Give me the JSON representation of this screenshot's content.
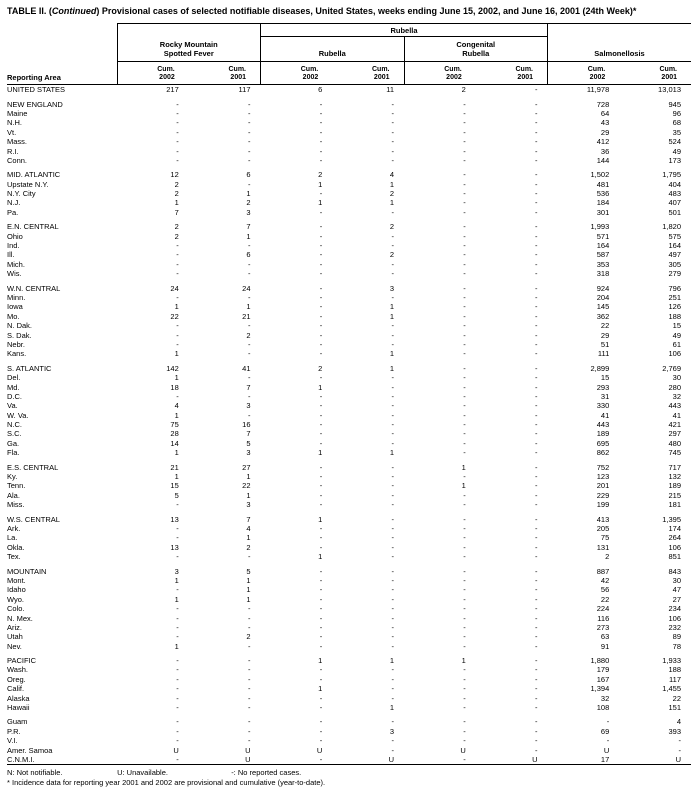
{
  "title": {
    "part1": "TABLE II. (",
    "italic": "Continued",
    "part2": ") Provisional cases of selected notifiable diseases, United States, weeks ending June 15, 2002, and June 16, 2001 (24th Week)*"
  },
  "header": {
    "reporting_area": "Reporting Area",
    "rubella_span": "Rubella",
    "groups": [
      "Rocky Mountain\nSpotted Fever",
      "Rubella",
      "Congenital\nRubella",
      "Salmonellosis"
    ],
    "cum_label": "Cum.",
    "years": [
      "2002",
      "2001"
    ]
  },
  "sections": [
    {
      "rows": [
        {
          "area": "UNITED STATES",
          "values": [
            "217",
            "117",
            "6",
            "11",
            "2",
            "-",
            "11,978",
            "13,013"
          ]
        }
      ]
    },
    {
      "rows": [
        {
          "area": "NEW ENGLAND",
          "values": [
            "-",
            "-",
            "-",
            "-",
            "-",
            "-",
            "728",
            "945"
          ]
        },
        {
          "area": "Maine",
          "values": [
            "-",
            "-",
            "-",
            "-",
            "-",
            "-",
            "64",
            "96"
          ]
        },
        {
          "area": "N.H.",
          "values": [
            "-",
            "-",
            "-",
            "-",
            "-",
            "-",
            "43",
            "68"
          ]
        },
        {
          "area": "Vt.",
          "values": [
            "-",
            "-",
            "-",
            "-",
            "-",
            "-",
            "29",
            "35"
          ]
        },
        {
          "area": "Mass.",
          "values": [
            "-",
            "-",
            "-",
            "-",
            "-",
            "-",
            "412",
            "524"
          ]
        },
        {
          "area": "R.I.",
          "values": [
            "-",
            "-",
            "-",
            "-",
            "-",
            "-",
            "36",
            "49"
          ]
        },
        {
          "area": "Conn.",
          "values": [
            "-",
            "-",
            "-",
            "-",
            "-",
            "-",
            "144",
            "173"
          ]
        }
      ]
    },
    {
      "rows": [
        {
          "area": "MID. ATLANTIC",
          "values": [
            "12",
            "6",
            "2",
            "4",
            "-",
            "-",
            "1,502",
            "1,795"
          ]
        },
        {
          "area": "Upstate N.Y.",
          "values": [
            "2",
            "-",
            "1",
            "1",
            "-",
            "-",
            "481",
            "404"
          ]
        },
        {
          "area": "N.Y. City",
          "values": [
            "2",
            "1",
            "-",
            "2",
            "-",
            "-",
            "536",
            "483"
          ]
        },
        {
          "area": "N.J.",
          "values": [
            "1",
            "2",
            "1",
            "1",
            "-",
            "-",
            "184",
            "407"
          ]
        },
        {
          "area": "Pa.",
          "values": [
            "7",
            "3",
            "-",
            "-",
            "-",
            "-",
            "301",
            "501"
          ]
        }
      ]
    },
    {
      "rows": [
        {
          "area": "E.N. CENTRAL",
          "values": [
            "2",
            "7",
            "-",
            "2",
            "-",
            "-",
            "1,993",
            "1,820"
          ]
        },
        {
          "area": "Ohio",
          "values": [
            "2",
            "1",
            "-",
            "-",
            "-",
            "-",
            "571",
            "575"
          ]
        },
        {
          "area": "Ind.",
          "values": [
            "-",
            "-",
            "-",
            "-",
            "-",
            "-",
            "164",
            "164"
          ]
        },
        {
          "area": "Ill.",
          "values": [
            "-",
            "6",
            "-",
            "2",
            "-",
            "-",
            "587",
            "497"
          ]
        },
        {
          "area": "Mich.",
          "values": [
            "-",
            "-",
            "-",
            "-",
            "-",
            "-",
            "353",
            "305"
          ]
        },
        {
          "area": "Wis.",
          "values": [
            "-",
            "-",
            "-",
            "-",
            "-",
            "-",
            "318",
            "279"
          ]
        }
      ]
    },
    {
      "rows": [
        {
          "area": "W.N. CENTRAL",
          "values": [
            "24",
            "24",
            "-",
            "3",
            "-",
            "-",
            "924",
            "796"
          ]
        },
        {
          "area": "Minn.",
          "values": [
            "-",
            "-",
            "-",
            "-",
            "-",
            "-",
            "204",
            "251"
          ]
        },
        {
          "area": "Iowa",
          "values": [
            "1",
            "1",
            "-",
            "1",
            "-",
            "-",
            "145",
            "126"
          ]
        },
        {
          "area": "Mo.",
          "values": [
            "22",
            "21",
            "-",
            "1",
            "-",
            "-",
            "362",
            "188"
          ]
        },
        {
          "area": "N. Dak.",
          "values": [
            "-",
            "-",
            "-",
            "-",
            "-",
            "-",
            "22",
            "15"
          ]
        },
        {
          "area": "S. Dak.",
          "values": [
            "-",
            "2",
            "-",
            "-",
            "-",
            "-",
            "29",
            "49"
          ]
        },
        {
          "area": "Nebr.",
          "values": [
            "-",
            "-",
            "-",
            "-",
            "-",
            "-",
            "51",
            "61"
          ]
        },
        {
          "area": "Kans.",
          "values": [
            "1",
            "-",
            "-",
            "1",
            "-",
            "-",
            "111",
            "106"
          ]
        }
      ]
    },
    {
      "rows": [
        {
          "area": "S. ATLANTIC",
          "values": [
            "142",
            "41",
            "2",
            "1",
            "-",
            "-",
            "2,899",
            "2,769"
          ]
        },
        {
          "area": "Del.",
          "values": [
            "1",
            "-",
            "-",
            "-",
            "-",
            "-",
            "15",
            "30"
          ]
        },
        {
          "area": "Md.",
          "values": [
            "18",
            "7",
            "1",
            "-",
            "-",
            "-",
            "293",
            "280"
          ]
        },
        {
          "area": "D.C.",
          "values": [
            "-",
            "-",
            "-",
            "-",
            "-",
            "-",
            "31",
            "32"
          ]
        },
        {
          "area": "Va.",
          "values": [
            "4",
            "3",
            "-",
            "-",
            "-",
            "-",
            "330",
            "443"
          ]
        },
        {
          "area": "W. Va.",
          "values": [
            "1",
            "-",
            "-",
            "-",
            "-",
            "-",
            "41",
            "41"
          ]
        },
        {
          "area": "N.C.",
          "values": [
            "75",
            "16",
            "-",
            "-",
            "-",
            "-",
            "443",
            "421"
          ]
        },
        {
          "area": "S.C.",
          "values": [
            "28",
            "7",
            "-",
            "-",
            "-",
            "-",
            "189",
            "297"
          ]
        },
        {
          "area": "Ga.",
          "values": [
            "14",
            "5",
            "-",
            "-",
            "-",
            "-",
            "695",
            "480"
          ]
        },
        {
          "area": "Fla.",
          "values": [
            "1",
            "3",
            "1",
            "1",
            "-",
            "-",
            "862",
            "745"
          ]
        }
      ]
    },
    {
      "rows": [
        {
          "area": "E.S. CENTRAL",
          "values": [
            "21",
            "27",
            "-",
            "-",
            "1",
            "-",
            "752",
            "717"
          ]
        },
        {
          "area": "Ky.",
          "values": [
            "1",
            "1",
            "-",
            "-",
            "-",
            "-",
            "123",
            "132"
          ]
        },
        {
          "area": "Tenn.",
          "values": [
            "15",
            "22",
            "-",
            "-",
            "1",
            "-",
            "201",
            "189"
          ]
        },
        {
          "area": "Ala.",
          "values": [
            "5",
            "1",
            "-",
            "-",
            "-",
            "-",
            "229",
            "215"
          ]
        },
        {
          "area": "Miss.",
          "values": [
            "-",
            "3",
            "-",
            "-",
            "-",
            "-",
            "199",
            "181"
          ]
        }
      ]
    },
    {
      "rows": [
        {
          "area": "W.S. CENTRAL",
          "values": [
            "13",
            "7",
            "1",
            "-",
            "-",
            "-",
            "413",
            "1,395"
          ]
        },
        {
          "area": "Ark.",
          "values": [
            "-",
            "4",
            "-",
            "-",
            "-",
            "-",
            "205",
            "174"
          ]
        },
        {
          "area": "La.",
          "values": [
            "-",
            "1",
            "-",
            "-",
            "-",
            "-",
            "75",
            "264"
          ]
        },
        {
          "area": "Okla.",
          "values": [
            "13",
            "2",
            "-",
            "-",
            "-",
            "-",
            "131",
            "106"
          ]
        },
        {
          "area": "Tex.",
          "values": [
            "-",
            "-",
            "1",
            "-",
            "-",
            "-",
            "2",
            "851"
          ]
        }
      ]
    },
    {
      "rows": [
        {
          "area": "MOUNTAIN",
          "values": [
            "3",
            "5",
            "-",
            "-",
            "-",
            "-",
            "887",
            "843"
          ]
        },
        {
          "area": "Mont.",
          "values": [
            "1",
            "1",
            "-",
            "-",
            "-",
            "-",
            "42",
            "30"
          ]
        },
        {
          "area": "Idaho",
          "values": [
            "-",
            "1",
            "-",
            "-",
            "-",
            "-",
            "56",
            "47"
          ]
        },
        {
          "area": "Wyo.",
          "values": [
            "1",
            "1",
            "-",
            "-",
            "-",
            "-",
            "22",
            "27"
          ]
        },
        {
          "area": "Colo.",
          "values": [
            "-",
            "-",
            "-",
            "-",
            "-",
            "-",
            "224",
            "234"
          ]
        },
        {
          "area": "N. Mex.",
          "values": [
            "-",
            "-",
            "-",
            "-",
            "-",
            "-",
            "116",
            "106"
          ]
        },
        {
          "area": "Ariz.",
          "values": [
            "-",
            "-",
            "-",
            "-",
            "-",
            "-",
            "273",
            "232"
          ]
        },
        {
          "area": "Utah",
          "values": [
            "-",
            "2",
            "-",
            "-",
            "-",
            "-",
            "63",
            "89"
          ]
        },
        {
          "area": "Nev.",
          "values": [
            "1",
            "-",
            "-",
            "-",
            "-",
            "-",
            "91",
            "78"
          ]
        }
      ]
    },
    {
      "rows": [
        {
          "area": "PACIFIC",
          "values": [
            "-",
            "-",
            "1",
            "1",
            "1",
            "-",
            "1,880",
            "1,933"
          ]
        },
        {
          "area": "Wash.",
          "values": [
            "-",
            "-",
            "-",
            "-",
            "-",
            "-",
            "179",
            "188"
          ]
        },
        {
          "area": "Oreg.",
          "values": [
            "-",
            "-",
            "-",
            "-",
            "-",
            "-",
            "167",
            "117"
          ]
        },
        {
          "area": "Calif.",
          "values": [
            "-",
            "-",
            "1",
            "-",
            "-",
            "-",
            "1,394",
            "1,455"
          ]
        },
        {
          "area": "Alaska",
          "values": [
            "-",
            "-",
            "-",
            "-",
            "-",
            "-",
            "32",
            "22"
          ]
        },
        {
          "area": "Hawaii",
          "values": [
            "-",
            "-",
            "-",
            "1",
            "-",
            "-",
            "108",
            "151"
          ]
        }
      ]
    },
    {
      "rows": [
        {
          "area": "Guam",
          "values": [
            "-",
            "-",
            "-",
            "-",
            "-",
            "-",
            "-",
            "4"
          ]
        },
        {
          "area": "P.R.",
          "values": [
            "-",
            "-",
            "-",
            "3",
            "-",
            "-",
            "69",
            "393"
          ]
        },
        {
          "area": "V.I.",
          "values": [
            "-",
            "-",
            "-",
            "-",
            "-",
            "-",
            "-",
            "-"
          ]
        },
        {
          "area": "Amer. Samoa",
          "values": [
            "U",
            "U",
            "U",
            "-",
            "U",
            "-",
            "U",
            "-"
          ]
        },
        {
          "area": "C.N.M.I.",
          "values": [
            "-",
            "U",
            "-",
            "U",
            "-",
            "U",
            "17",
            "U"
          ]
        }
      ]
    }
  ],
  "footnotes": {
    "n": "N: Not notifiable.",
    "u": "U: Unavailable.",
    "dash": "-: No reported cases.",
    "asterisk": "* Incidence data for reporting year 2001 and 2002 are provisional and cumulative (year-to-date)."
  }
}
